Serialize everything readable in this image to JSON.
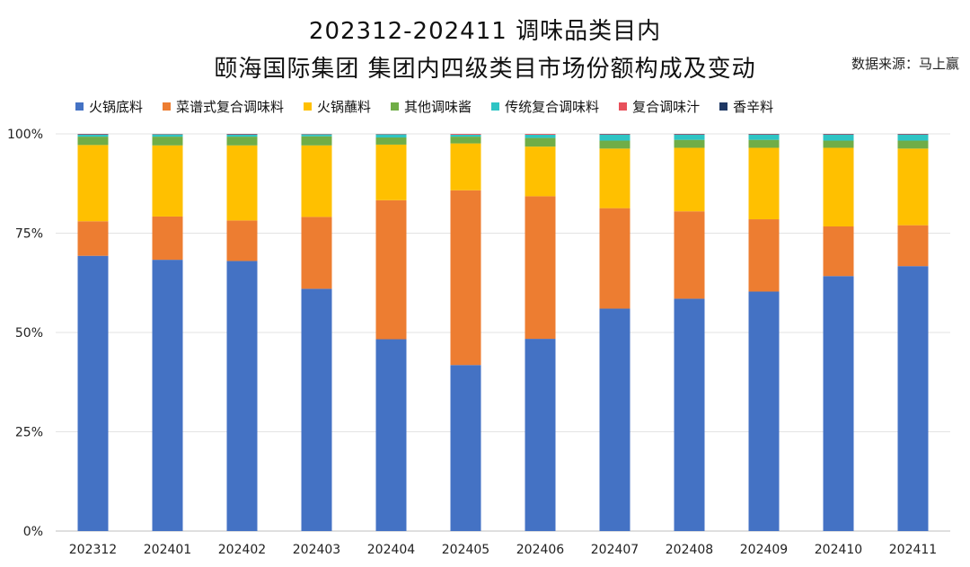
{
  "title": {
    "line1": "202312-202411 调味品类目内",
    "line2": "颐海国际集团 集团内四级类目市场份额构成及变动"
  },
  "source": "数据来源：马上赢",
  "chart_data": {
    "type": "bar",
    "stacked": true,
    "percent": true,
    "categories": [
      "202312",
      "202401",
      "202402",
      "202403",
      "202404",
      "202405",
      "202406",
      "202407",
      "202408",
      "202409",
      "202410",
      "202411"
    ],
    "series": [
      {
        "name": "火锅底料",
        "color": "#4472C4",
        "values": [
          69.3,
          68.3,
          68.0,
          61.0,
          48.3,
          41.8,
          48.4,
          56.0,
          58.5,
          60.3,
          64.2,
          66.7
        ]
      },
      {
        "name": "菜谱式复合调味料",
        "color": "#ED7D31",
        "values": [
          8.7,
          10.9,
          10.2,
          18.1,
          35.0,
          44.0,
          35.9,
          25.3,
          22.0,
          18.2,
          12.5,
          10.3
        ]
      },
      {
        "name": "火锅蘸料",
        "color": "#FFC000",
        "values": [
          19.2,
          17.9,
          18.9,
          18.0,
          14.0,
          11.8,
          12.5,
          15.0,
          16.0,
          18.0,
          19.8,
          19.3
        ]
      },
      {
        "name": "其他调味酱",
        "color": "#70AD47",
        "values": [
          2.1,
          2.2,
          2.2,
          2.3,
          1.8,
          1.7,
          2.2,
          2.0,
          2.0,
          2.0,
          1.8,
          2.0
        ]
      },
      {
        "name": "传统复合调味料",
        "color": "#2EC4C4",
        "values": [
          0.5,
          0.6,
          0.5,
          0.5,
          0.8,
          0.5,
          0.8,
          1.5,
          1.3,
          1.3,
          1.5,
          1.5
        ]
      },
      {
        "name": "复合调味汁",
        "color": "#E8505B",
        "values": [
          0.1,
          0.1,
          0.1,
          0.1,
          0.1,
          0.2,
          0.2,
          0.1,
          0.1,
          0.1,
          0.1,
          0.1
        ]
      },
      {
        "name": "香辛料",
        "color": "#1F3864",
        "values": [
          0.1,
          0.0,
          0.1,
          0.0,
          0.0,
          0.0,
          0.0,
          0.1,
          0.1,
          0.1,
          0.1,
          0.1
        ]
      }
    ],
    "yticks": [
      "0%",
      "25%",
      "50%",
      "75%",
      "100%"
    ],
    "ylim": [
      0,
      100
    ],
    "grid": true,
    "legend_position": "top"
  }
}
